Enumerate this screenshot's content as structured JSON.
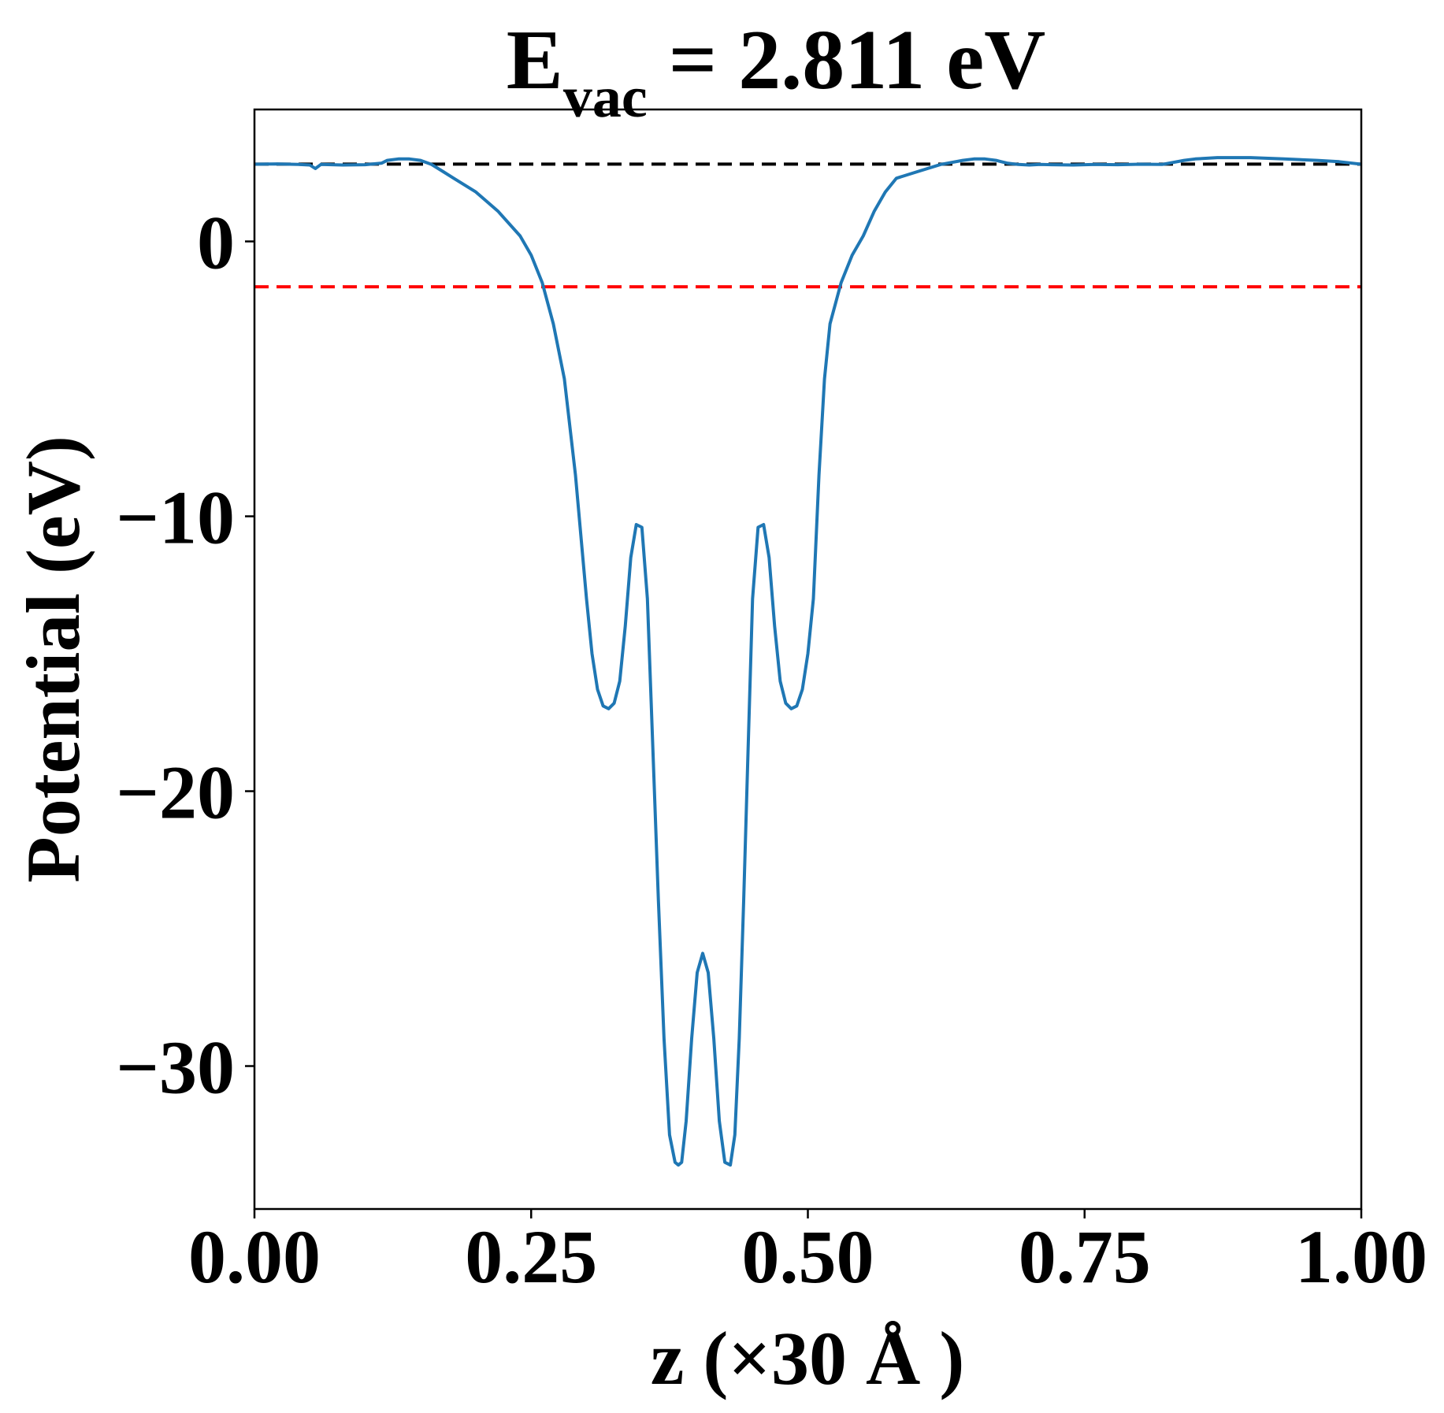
{
  "chart_data": {
    "type": "line",
    "title": "E",
    "title_subscript": "vac",
    "title_rest": " = 2.811 eV",
    "xlabel": "z (×30 Å )",
    "ylabel": "Potential (eV)",
    "xlim": [
      0.0,
      1.0
    ],
    "ylim": [
      -35.2,
      4.8
    ],
    "xticks": [
      0.0,
      0.25,
      0.5,
      0.75,
      1.0
    ],
    "xtick_labels": [
      "0.00",
      "0.25",
      "0.50",
      "0.75",
      "1.00"
    ],
    "yticks": [
      0,
      -10,
      -20,
      -30
    ],
    "ytick_labels": [
      "0",
      "−10",
      "−20",
      "−30"
    ],
    "grid": false,
    "reference_lines": [
      {
        "y": 2.811,
        "color": "#000000",
        "style": "dashed"
      },
      {
        "y": -1.65,
        "color": "#ff0000",
        "style": "dashed"
      }
    ],
    "series": [
      {
        "color": "#1f77b4",
        "x": [
          0.0,
          0.02,
          0.04,
          0.05,
          0.055,
          0.06,
          0.08,
          0.1,
          0.115,
          0.12,
          0.13,
          0.14,
          0.15,
          0.16,
          0.17,
          0.18,
          0.2,
          0.22,
          0.24,
          0.25,
          0.26,
          0.27,
          0.28,
          0.29,
          0.3,
          0.305,
          0.31,
          0.315,
          0.32,
          0.325,
          0.33,
          0.335,
          0.34,
          0.345,
          0.35,
          0.355,
          0.36,
          0.365,
          0.37,
          0.375,
          0.38,
          0.383,
          0.386,
          0.39,
          0.395,
          0.4,
          0.405,
          0.41,
          0.415,
          0.42,
          0.425,
          0.43,
          0.434,
          0.438,
          0.442,
          0.446,
          0.45,
          0.455,
          0.46,
          0.465,
          0.47,
          0.475,
          0.48,
          0.485,
          0.49,
          0.495,
          0.5,
          0.505,
          0.51,
          0.515,
          0.52,
          0.53,
          0.54,
          0.55,
          0.56,
          0.57,
          0.58,
          0.6,
          0.62,
          0.64,
          0.65,
          0.66,
          0.67,
          0.68,
          0.69,
          0.7,
          0.71,
          0.72,
          0.74,
          0.76,
          0.78,
          0.8,
          0.82,
          0.84,
          0.85,
          0.87,
          0.9,
          0.93,
          0.96,
          0.98,
          1.0
        ],
        "y": [
          2.81,
          2.82,
          2.8,
          2.78,
          2.65,
          2.8,
          2.78,
          2.79,
          2.85,
          2.95,
          3.0,
          3.0,
          2.95,
          2.8,
          2.55,
          2.3,
          1.8,
          1.1,
          0.2,
          -0.5,
          -1.5,
          -3.0,
          -5.0,
          -8.5,
          -13.0,
          -15.0,
          -16.3,
          -16.9,
          -17.0,
          -16.8,
          -16.0,
          -14.0,
          -11.5,
          -10.3,
          -10.4,
          -13.0,
          -18.5,
          -24.0,
          -29.0,
          -32.5,
          -33.5,
          -33.6,
          -33.5,
          -32.0,
          -29.0,
          -26.6,
          -25.9,
          -26.6,
          -29.0,
          -32.0,
          -33.5,
          -33.6,
          -32.5,
          -29.0,
          -24.0,
          -18.5,
          -13.0,
          -10.4,
          -10.3,
          -11.5,
          -14.0,
          -16.0,
          -16.8,
          -17.0,
          -16.9,
          -16.3,
          -15.0,
          -13.0,
          -8.5,
          -5.0,
          -3.0,
          -1.5,
          -0.5,
          0.2,
          1.1,
          1.8,
          2.3,
          2.55,
          2.8,
          2.95,
          3.0,
          3.0,
          2.95,
          2.85,
          2.8,
          2.78,
          2.8,
          2.79,
          2.78,
          2.8,
          2.79,
          2.81,
          2.8,
          2.95,
          3.0,
          3.05,
          3.05,
          3.0,
          2.95,
          2.9,
          2.81
        ]
      }
    ]
  }
}
